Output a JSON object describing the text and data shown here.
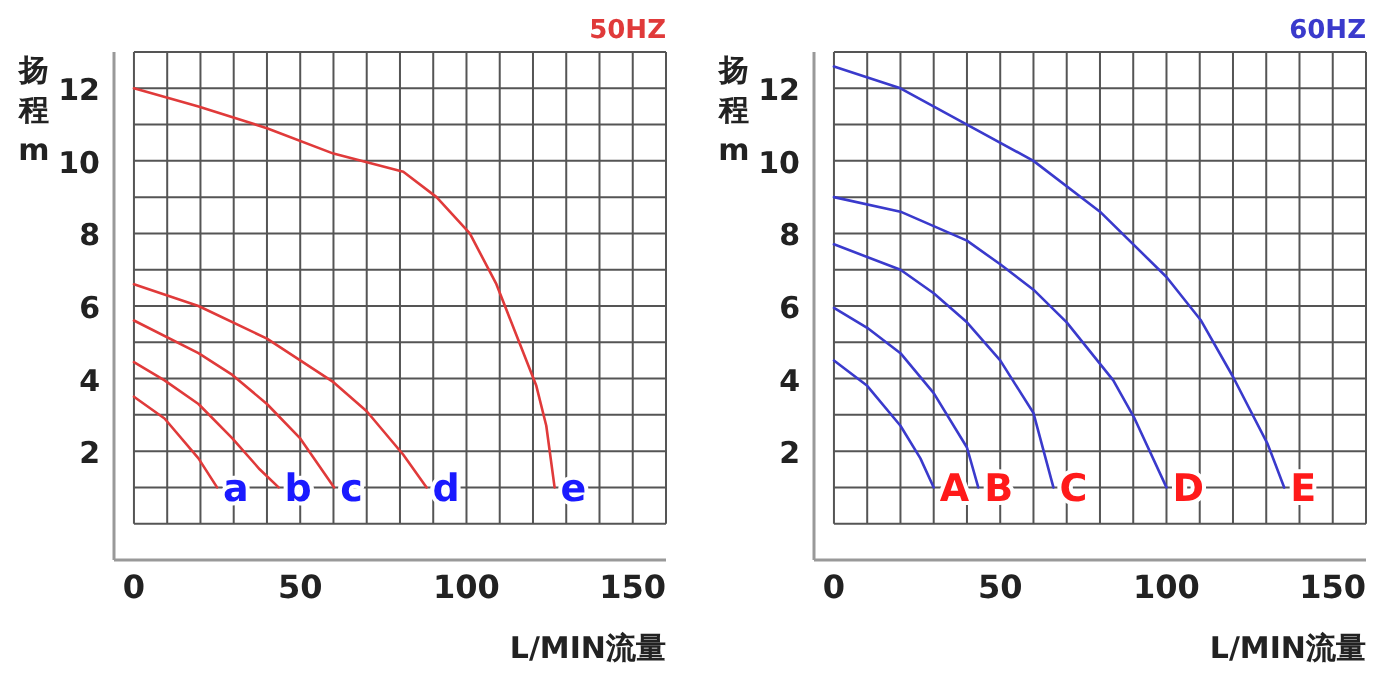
{
  "chart_data": [
    {
      "type": "line",
      "title": "50HZ",
      "xlabel": "L/MIN流量",
      "ylabel": "扬程m",
      "xlim": [
        -6,
        160
      ],
      "ylim": [
        -1,
        13
      ],
      "grid": true,
      "legend": false,
      "marker": "none",
      "line_style": "solid",
      "xticks": [
        0,
        {
          "value": 10,
          "label": null
        },
        {
          "value": 20,
          "label": null
        },
        {
          "value": 30,
          "label": null
        },
        {
          "value": 40,
          "label": null
        },
        50,
        {
          "value": 60,
          "label": null
        },
        {
          "value": 70,
          "label": null
        },
        {
          "value": 80,
          "label": null
        },
        {
          "value": 90,
          "label": null
        },
        100,
        {
          "value": 110,
          "label": null
        },
        {
          "value": 120,
          "label": null
        },
        {
          "value": 130,
          "label": null
        },
        {
          "value": 140,
          "label": null
        },
        150,
        {
          "value": 160,
          "label": null
        }
      ],
      "yticks": [
        {
          "value": 0,
          "label": null
        },
        {
          "value": 1,
          "label": null
        },
        2,
        {
          "value": 3,
          "label": null
        },
        4,
        {
          "value": 5,
          "label": null
        },
        6,
        {
          "value": 7,
          "label": null
        },
        8,
        {
          "value": 9,
          "label": null
        },
        10,
        {
          "value": 11,
          "label": null
        },
        12,
        {
          "value": 13,
          "label": null
        }
      ],
      "series": [
        {
          "name": "a",
          "color": "#e03a3a",
          "x": [
            0,
            9.2,
            19.4,
            25
          ],
          "values": [
            3.5,
            2.9,
            1.8,
            1.0
          ]
        },
        {
          "name": "b",
          "color": "#e03a3a",
          "x": [
            0,
            9.2,
            19.4,
            29.6,
            37.8,
            43.5
          ],
          "values": [
            4.45,
            3.95,
            3.3,
            2.35,
            1.5,
            1.0
          ]
        },
        {
          "name": "c",
          "color": "#e03a3a",
          "x": [
            0,
            19.4,
            29.6,
            40,
            50,
            60.2
          ],
          "values": [
            5.6,
            4.7,
            4.1,
            3.3,
            2.35,
            1.0
          ]
        },
        {
          "name": "d",
          "color": "#e03a3a",
          "x": [
            0,
            19.4,
            40,
            60,
            70,
            81,
            88
          ],
          "values": [
            6.6,
            6.0,
            5.1,
            3.9,
            3.1,
            1.9,
            1.0
          ]
        },
        {
          "name": "e",
          "color": "#e03a3a",
          "x": [
            0,
            19.4,
            40,
            60,
            81,
            91,
            101,
            109,
            115,
            121,
            124,
            126.5
          ],
          "values": [
            12.0,
            11.5,
            10.9,
            10.2,
            9.7,
            9.0,
            8.0,
            6.6,
            5.2,
            3.8,
            2.7,
            1.0
          ]
        }
      ]
    },
    {
      "type": "line",
      "title": "60HZ",
      "xlabel": "L/MIN流量",
      "ylabel": "扬程m",
      "xlim": [
        -6,
        160
      ],
      "ylim": [
        -1,
        13
      ],
      "grid": true,
      "legend": false,
      "marker": "none",
      "line_style": "solid",
      "xticks": [
        0,
        {
          "value": 10,
          "label": null
        },
        {
          "value": 20,
          "label": null
        },
        {
          "value": 30,
          "label": null
        },
        {
          "value": 40,
          "label": null
        },
        50,
        {
          "value": 60,
          "label": null
        },
        {
          "value": 70,
          "label": null
        },
        {
          "value": 80,
          "label": null
        },
        {
          "value": 90,
          "label": null
        },
        100,
        {
          "value": 110,
          "label": null
        },
        {
          "value": 120,
          "label": null
        },
        {
          "value": 130,
          "label": null
        },
        {
          "value": 140,
          "label": null
        },
        150,
        {
          "value": 160,
          "label": null
        }
      ],
      "yticks": [
        {
          "value": 0,
          "label": null
        },
        {
          "value": 1,
          "label": null
        },
        2,
        {
          "value": 3,
          "label": null
        },
        4,
        {
          "value": 5,
          "label": null
        },
        6,
        {
          "value": 7,
          "label": null
        },
        8,
        {
          "value": 9,
          "label": null
        },
        10,
        {
          "value": 11,
          "label": null
        },
        12,
        {
          "value": 13,
          "label": null
        }
      ],
      "series": [
        {
          "name": "A",
          "color": "#3a3acc",
          "x": [
            0,
            10,
            20,
            26,
            30
          ],
          "values": [
            4.5,
            3.8,
            2.7,
            1.8,
            1.0
          ]
        },
        {
          "name": "B",
          "color": "#3a3acc",
          "x": [
            0,
            10,
            20,
            30,
            40,
            43.4
          ],
          "values": [
            5.95,
            5.4,
            4.7,
            3.6,
            2.1,
            1.0
          ]
        },
        {
          "name": "C",
          "color": "#3a3acc",
          "x": [
            0,
            20,
            30,
            40,
            50,
            60,
            66
          ],
          "values": [
            7.7,
            7.0,
            6.35,
            5.55,
            4.5,
            3.05,
            1.0
          ]
        },
        {
          "name": "D",
          "color": "#3a3acc",
          "x": [
            0,
            20,
            40,
            50,
            60,
            70,
            84,
            90.4,
            100
          ],
          "values": [
            9.0,
            8.6,
            7.8,
            7.15,
            6.45,
            5.55,
            3.95,
            2.9,
            1.0
          ]
        },
        {
          "name": "E",
          "color": "#3a3acc",
          "x": [
            0,
            20,
            40,
            60,
            80,
            100,
            110.4,
            120,
            130.4,
            135.4
          ],
          "values": [
            12.6,
            12.0,
            11.0,
            10.0,
            8.6,
            6.8,
            5.6,
            4.05,
            2.2,
            1.0
          ]
        }
      ]
    }
  ]
}
